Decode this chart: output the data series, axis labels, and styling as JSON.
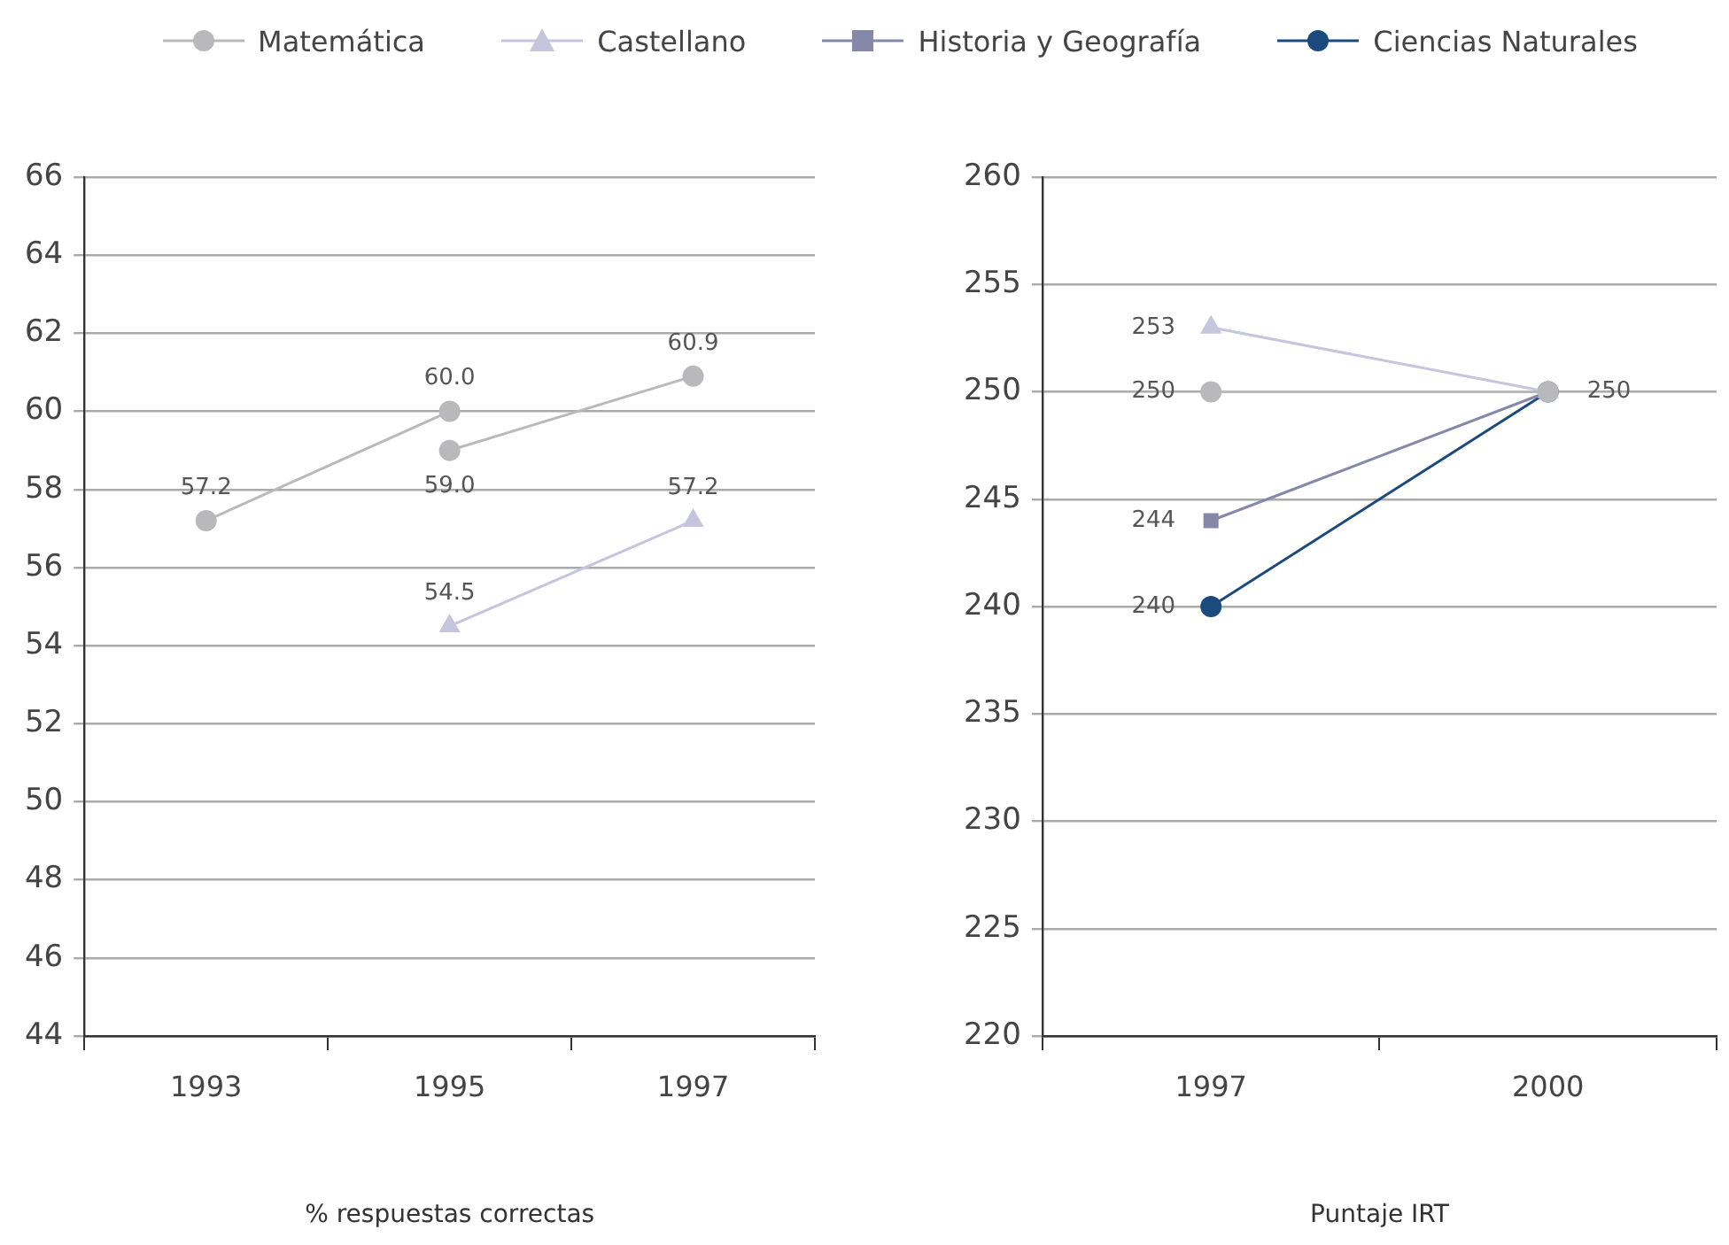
{
  "chart_data": [
    {
      "type": "line",
      "xlabel": "% respuestas correctas",
      "categories": [
        "1993",
        "1995",
        "1997"
      ],
      "series": [
        {
          "name": "Matemática",
          "color": "#b9b9bb",
          "marker": "circle",
          "values": [
            57.2,
            60.0,
            null
          ],
          "value_labels": [
            "57.2",
            "60.0",
            null
          ]
        },
        {
          "color": "#b9b9bb",
          "marker": "circle",
          "values": [
            null,
            59.0,
            60.9
          ],
          "value_labels": [
            null,
            "59.0",
            "60.9"
          ]
        },
        {
          "name": "Castellano",
          "color": "#c5c5dd",
          "marker": "triangle",
          "values": [
            null,
            54.5,
            57.2
          ],
          "value_labels": [
            null,
            "54.5",
            "57.2"
          ]
        }
      ],
      "ylim": [
        44,
        66
      ],
      "yticks": [
        44,
        46,
        48,
        50,
        52,
        54,
        56,
        58,
        60,
        62,
        64,
        66
      ],
      "grid": "y",
      "legend": "top"
    },
    {
      "type": "line",
      "xlabel": "Puntaje IRT",
      "categories": [
        "1997",
        "2000"
      ],
      "series": [
        {
          "name": "Matemática",
          "color": "#b9b9bb",
          "marker": "circle",
          "values": [
            250,
            250
          ],
          "value_labels": [
            "250",
            "250"
          ]
        },
        {
          "name": "Castellano",
          "color": "#c5c5dd",
          "marker": "triangle",
          "values": [
            253,
            250
          ],
          "value_labels": [
            "253",
            null
          ]
        },
        {
          "name": "Historia y Geografía",
          "color": "#8688aa",
          "marker": "square",
          "values": [
            244,
            250
          ],
          "value_labels": [
            "244",
            null
          ]
        },
        {
          "name": "Ciencias Naturales",
          "color": "#1b4a7c",
          "marker": "circle",
          "values": [
            240,
            250
          ],
          "value_labels": [
            "240",
            null
          ]
        }
      ],
      "ylim": [
        220,
        260
      ],
      "yticks": [
        220,
        225,
        230,
        235,
        240,
        245,
        250,
        255,
        260
      ],
      "grid": "y",
      "legend": "top"
    }
  ]
}
